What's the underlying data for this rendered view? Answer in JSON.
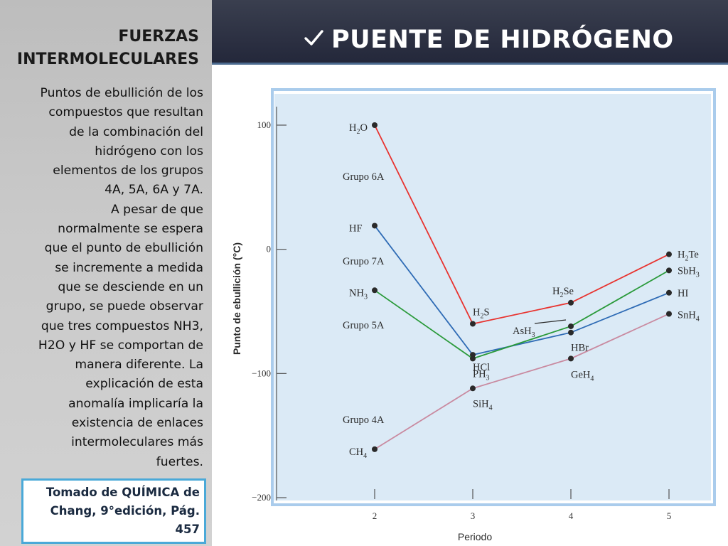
{
  "sidebar": {
    "title_line1": "FUERZAS",
    "title_line2": "INTERMOLECULARES",
    "paragraph": [
      "Puntos de ebullición de los",
      "compuestos  que resultan",
      "de la combinación del",
      "hidrógeno con los",
      "elementos de los grupos",
      "4A, 5A, 6A y 7A.",
      "A pesar de que",
      "normalmente se espera",
      "que el punto de ebullición",
      "se incremente a medida",
      "que se desciende en un",
      "grupo, se puede observar",
      "que tres compuestos NH3,",
      "H2O y HF se comportan de",
      "manera diferente. La",
      "explicación de esta",
      "anomalía implicaría  la",
      "existencia de enlaces",
      "intermoleculares más",
      "fuertes."
    ],
    "source": [
      "Tomado de QUÍMICA  de",
      "Chang, 9°edición, Pág.",
      "457"
    ]
  },
  "header": {
    "title": "PUENTE DE HIDRÓGENO",
    "icon": "check-icon"
  },
  "colors": {
    "red": "#e8332f",
    "blue": "#2e6bb5",
    "green": "#2a9a3a",
    "pink": "#c98aa0",
    "plot_bg": "#dbeaf6",
    "frame": "#aaccec"
  },
  "chart_data": {
    "type": "line",
    "xlabel": "Periodo",
    "ylabel": "Punto de ebullición (°C)",
    "x": [
      2,
      3,
      4,
      5
    ],
    "ylim": [
      -200,
      100
    ],
    "yticks": [
      100,
      0,
      -100,
      -200
    ],
    "xticks": [
      2,
      3,
      4,
      5
    ],
    "series": [
      {
        "name": "Grupo 6A",
        "color": "red",
        "values": [
          100,
          -60,
          -43,
          -4
        ],
        "labels": [
          [
            "H",
            "2",
            "O"
          ],
          [
            "H",
            "2",
            "S"
          ],
          [
            "H",
            "2",
            "Se"
          ],
          [
            "H",
            "2",
            "Te"
          ]
        ]
      },
      {
        "name": "Grupo 7A",
        "color": "blue",
        "values": [
          19,
          -85,
          -67,
          -35
        ],
        "labels": [
          [
            "HF"
          ],
          [
            "HCl"
          ],
          [
            "HBr"
          ],
          [
            "HI"
          ]
        ]
      },
      {
        "name": "Grupo 5A",
        "color": "green",
        "values": [
          -33,
          -88,
          -62,
          -17
        ],
        "labels": [
          [
            "NH",
            "3",
            ""
          ],
          [
            "PH",
            "3",
            ""
          ],
          [
            "AsH",
            "3",
            ""
          ],
          [
            "SbH",
            "3",
            ""
          ]
        ]
      },
      {
        "name": "Grupo 4A",
        "color": "pink",
        "values": [
          -161,
          -112,
          -88,
          -52
        ],
        "labels": [
          [
            "CH",
            "4",
            ""
          ],
          [
            "SiH",
            "4",
            ""
          ],
          [
            "GeH",
            "4",
            ""
          ],
          [
            "SnH",
            "4",
            ""
          ]
        ]
      }
    ]
  }
}
